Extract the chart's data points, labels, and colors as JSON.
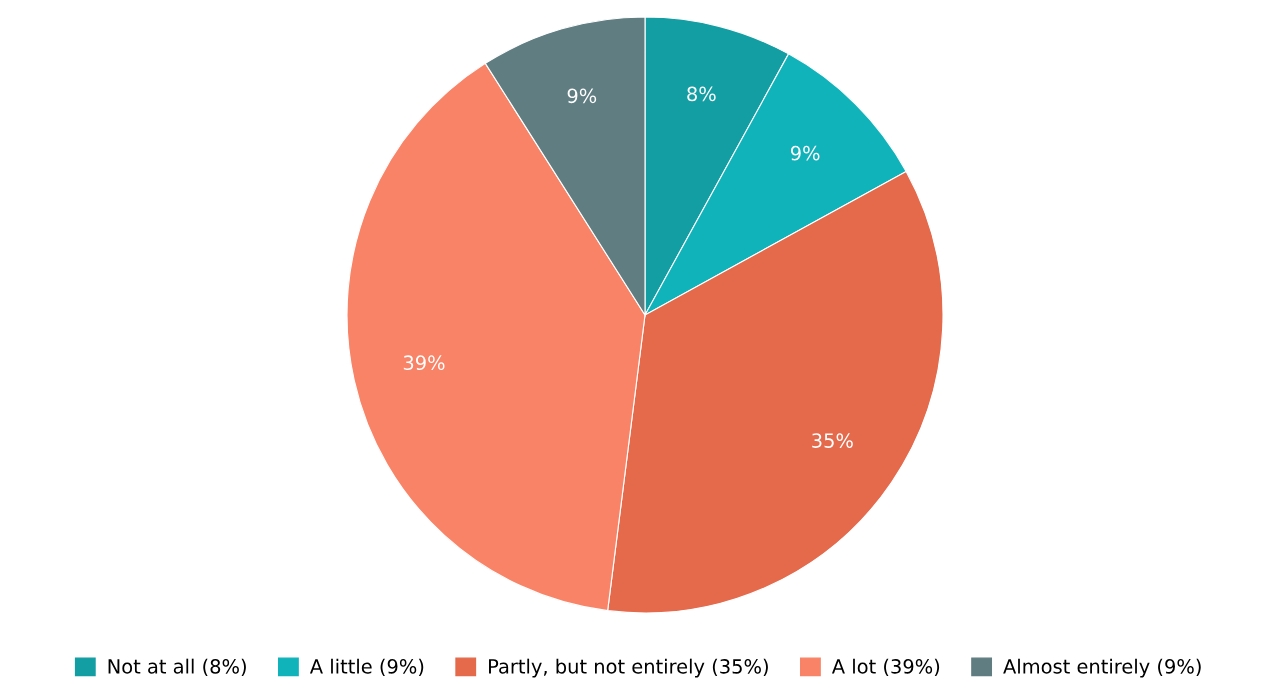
{
  "chart_data": {
    "type": "pie",
    "categories": [
      "Not at all (8%)",
      "A little (9%)",
      "Partly, but not entirely (35%)",
      "A lot (39%)",
      "Almost entirely (9%)"
    ],
    "values": [
      8,
      9,
      35,
      39,
      9
    ],
    "value_labels": [
      "8%",
      "9%",
      "35%",
      "39%",
      "9%"
    ],
    "colors": [
      "#129ea3",
      "#11b3bb",
      "#e56a4c",
      "#f98367",
      "#607d82"
    ],
    "legend": "bottom"
  }
}
